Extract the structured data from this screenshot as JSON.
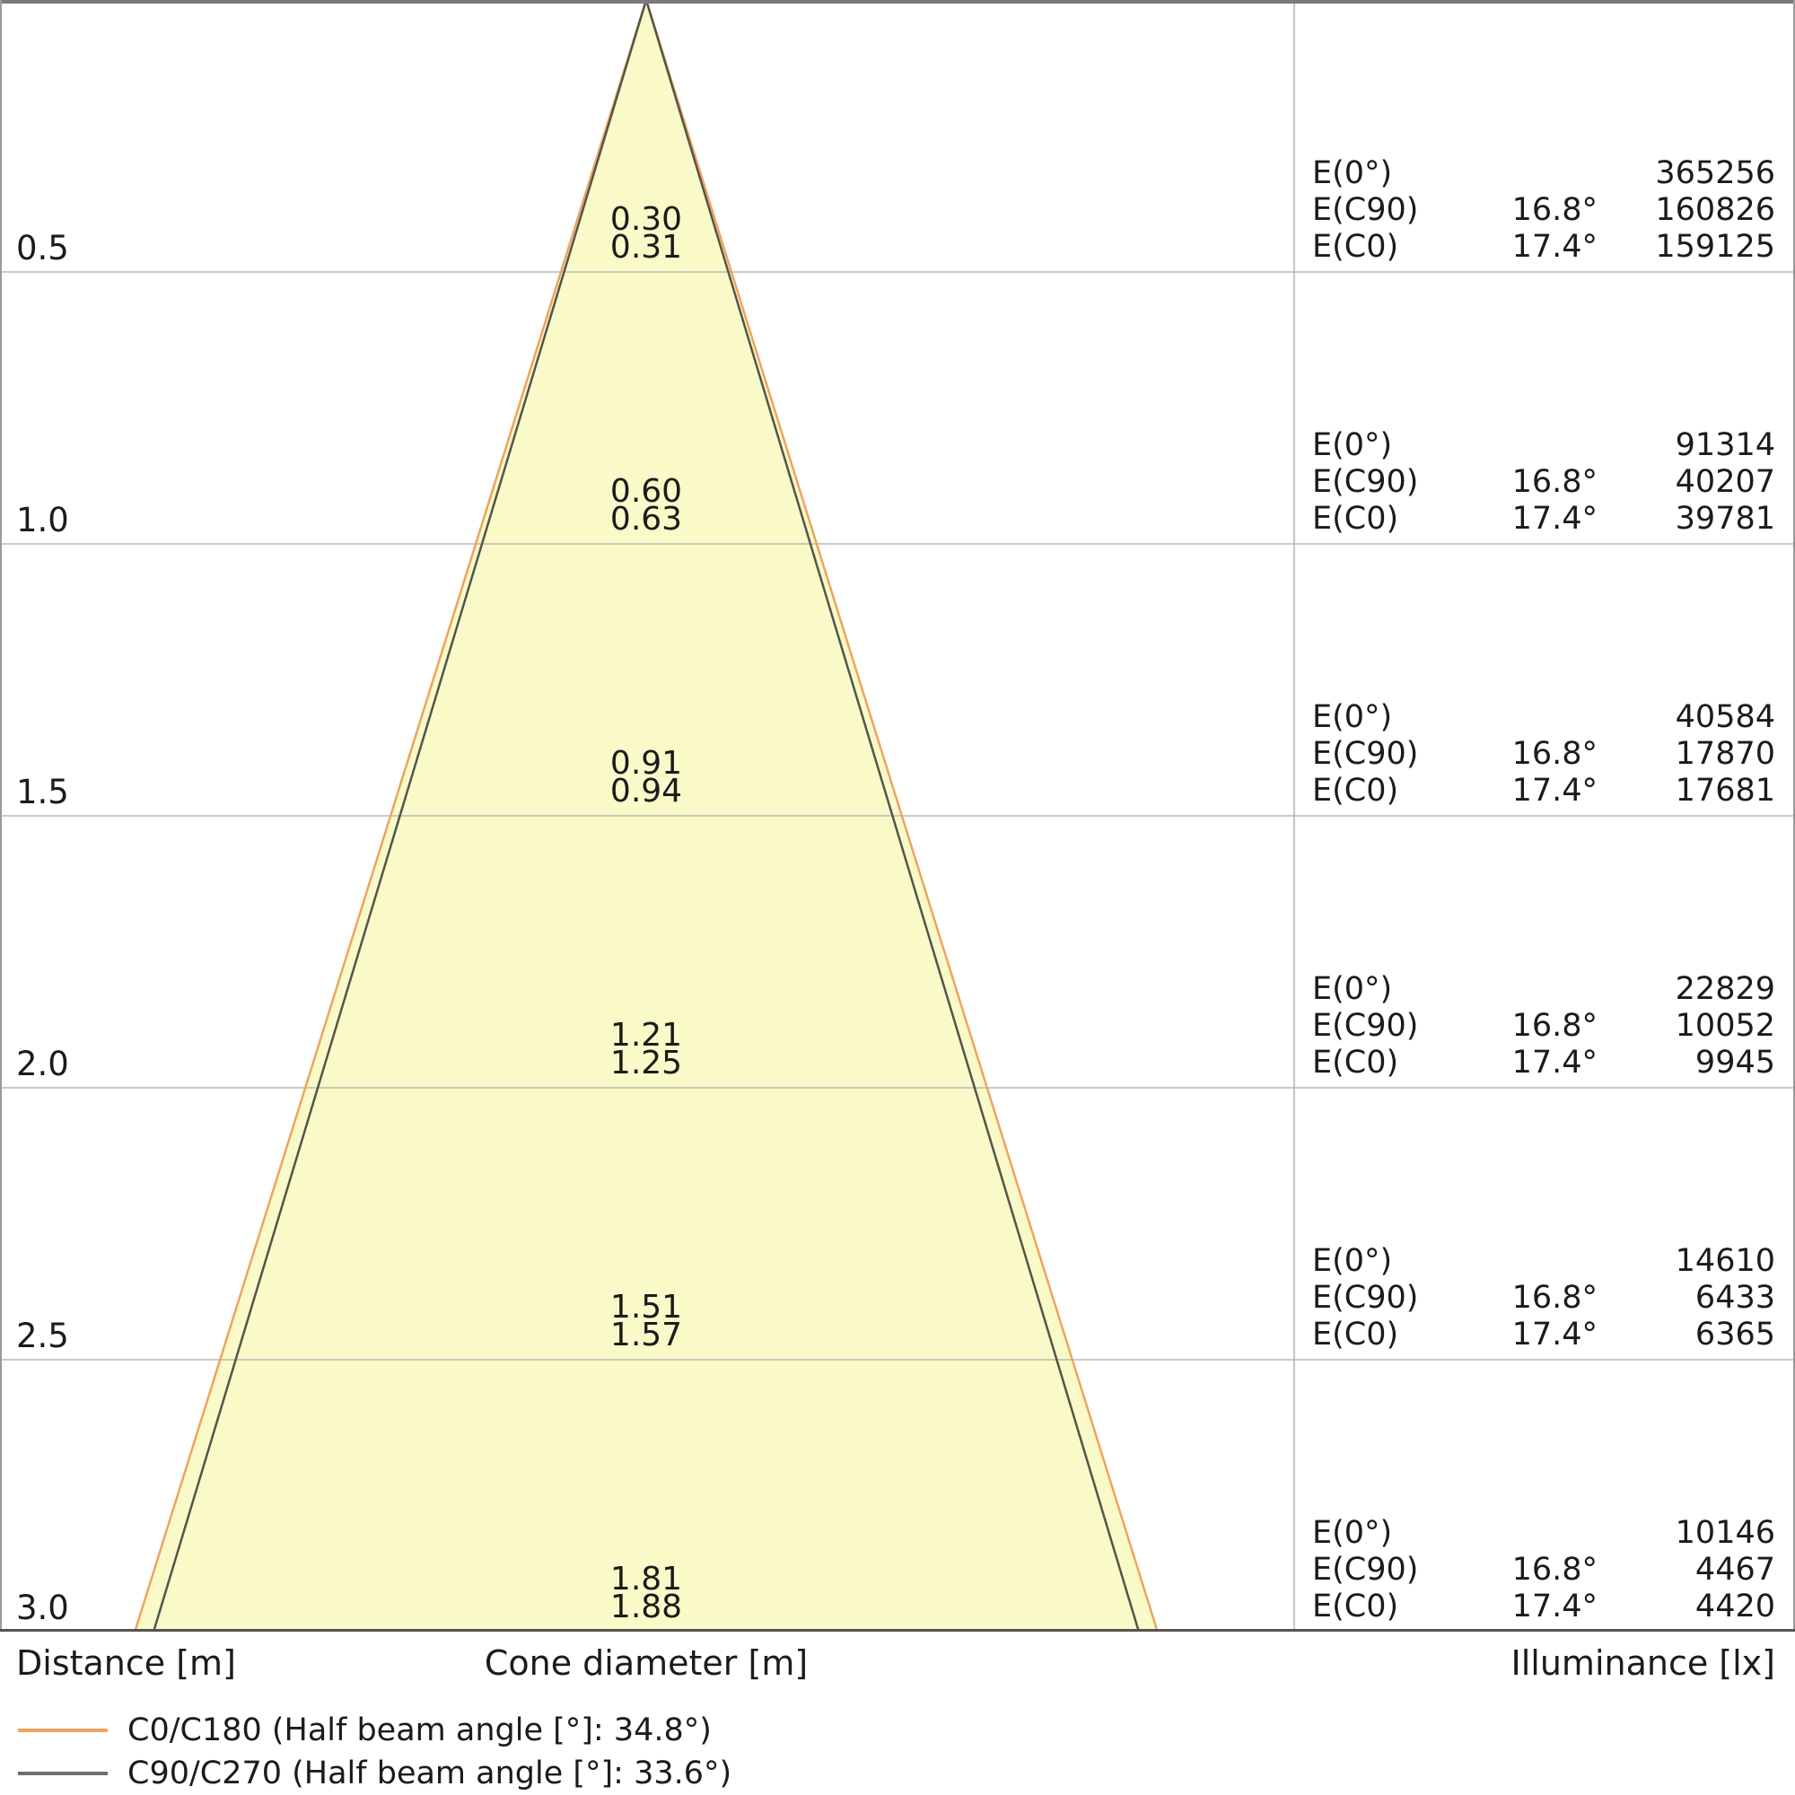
{
  "axis": {
    "distance_label": "Distance [m]",
    "cone_diameter_label": "Cone diameter [m]",
    "illuminance_label": "Illuminance [lx]"
  },
  "legend": [
    {
      "label": "C0/C180 (Half beam angle [°]: 34.8°)",
      "color": "#f2a35c"
    },
    {
      "label": "C90/C270 (Half beam angle [°]: 33.6°)",
      "color": "#6e6e6e"
    }
  ],
  "colors": {
    "cone_fill": "#faf9c8",
    "c0_line": "#eda45f",
    "c90_line": "#54544b",
    "gridline": "#b9b9b9",
    "divider": "#b0b0b0",
    "border": "#9a9a9a",
    "border_top": "#7b7b7b",
    "axis_line": "#55544c",
    "text": "#1b1b1b"
  },
  "rows": [
    {
      "distance": "0.5",
      "diameters": [
        "0.30",
        "0.31"
      ],
      "e_labels": [
        "E(0°)",
        "E(C90)",
        "E(C0)"
      ],
      "angles": [
        "",
        "16.8°",
        "17.4°"
      ],
      "values": [
        "365256",
        "160826",
        "159125"
      ]
    },
    {
      "distance": "1.0",
      "diameters": [
        "0.60",
        "0.63"
      ],
      "e_labels": [
        "E(0°)",
        "E(C90)",
        "E(C0)"
      ],
      "angles": [
        "",
        "16.8°",
        "17.4°"
      ],
      "values": [
        "91314",
        "40207",
        "39781"
      ]
    },
    {
      "distance": "1.5",
      "diameters": [
        "0.91",
        "0.94"
      ],
      "e_labels": [
        "E(0°)",
        "E(C90)",
        "E(C0)"
      ],
      "angles": [
        "",
        "16.8°",
        "17.4°"
      ],
      "values": [
        "40584",
        "17870",
        "17681"
      ]
    },
    {
      "distance": "2.0",
      "diameters": [
        "1.21",
        "1.25"
      ],
      "e_labels": [
        "E(0°)",
        "E(C90)",
        "E(C0)"
      ],
      "angles": [
        "",
        "16.8°",
        "17.4°"
      ],
      "values": [
        "22829",
        "10052",
        "9945"
      ]
    },
    {
      "distance": "2.5",
      "diameters": [
        "1.51",
        "1.57"
      ],
      "e_labels": [
        "E(0°)",
        "E(C90)",
        "E(C0)"
      ],
      "angles": [
        "",
        "16.8°",
        "17.4°"
      ],
      "values": [
        "14610",
        "6433",
        "6365"
      ]
    },
    {
      "distance": "3.0",
      "diameters": [
        "1.81",
        "1.88"
      ],
      "e_labels": [
        "E(0°)",
        "E(C90)",
        "E(C0)"
      ],
      "angles": [
        "",
        "16.8°",
        "17.4°"
      ],
      "values": [
        "10146",
        "4467",
        "4420"
      ]
    }
  ],
  "chart_data": {
    "type": "area",
    "title": "Luminaire light cone diagram (beam spread with distance)",
    "xlabel": "Cone diameter [m]",
    "ylabel": "Distance [m]",
    "ylabel_right": "Illuminance [lx]",
    "distances_m": [
      0.5,
      1.0,
      1.5,
      2.0,
      2.5,
      3.0
    ],
    "grid": true,
    "series": [
      {
        "name": "C0/C180",
        "half_beam_angle_deg": 34.8,
        "half_angle_deg": 17.4,
        "cone_diameter_m": [
          0.31,
          0.63,
          0.94,
          1.25,
          1.57,
          1.88
        ],
        "illuminance_E_C0_lx": [
          159125,
          39781,
          17681,
          9945,
          6365,
          4420
        ],
        "color": "#eda45f"
      },
      {
        "name": "C90/C270",
        "half_beam_angle_deg": 33.6,
        "half_angle_deg": 16.8,
        "cone_diameter_m": [
          0.3,
          0.6,
          0.91,
          1.21,
          1.51,
          1.81
        ],
        "illuminance_E_C90_lx": [
          160826,
          40207,
          17870,
          10052,
          6433,
          4467
        ],
        "color": "#54544b"
      },
      {
        "name": "E(0°)",
        "illuminance_E0_lx": [
          365256,
          91314,
          40584,
          22829,
          14610,
          10146
        ]
      }
    ]
  }
}
